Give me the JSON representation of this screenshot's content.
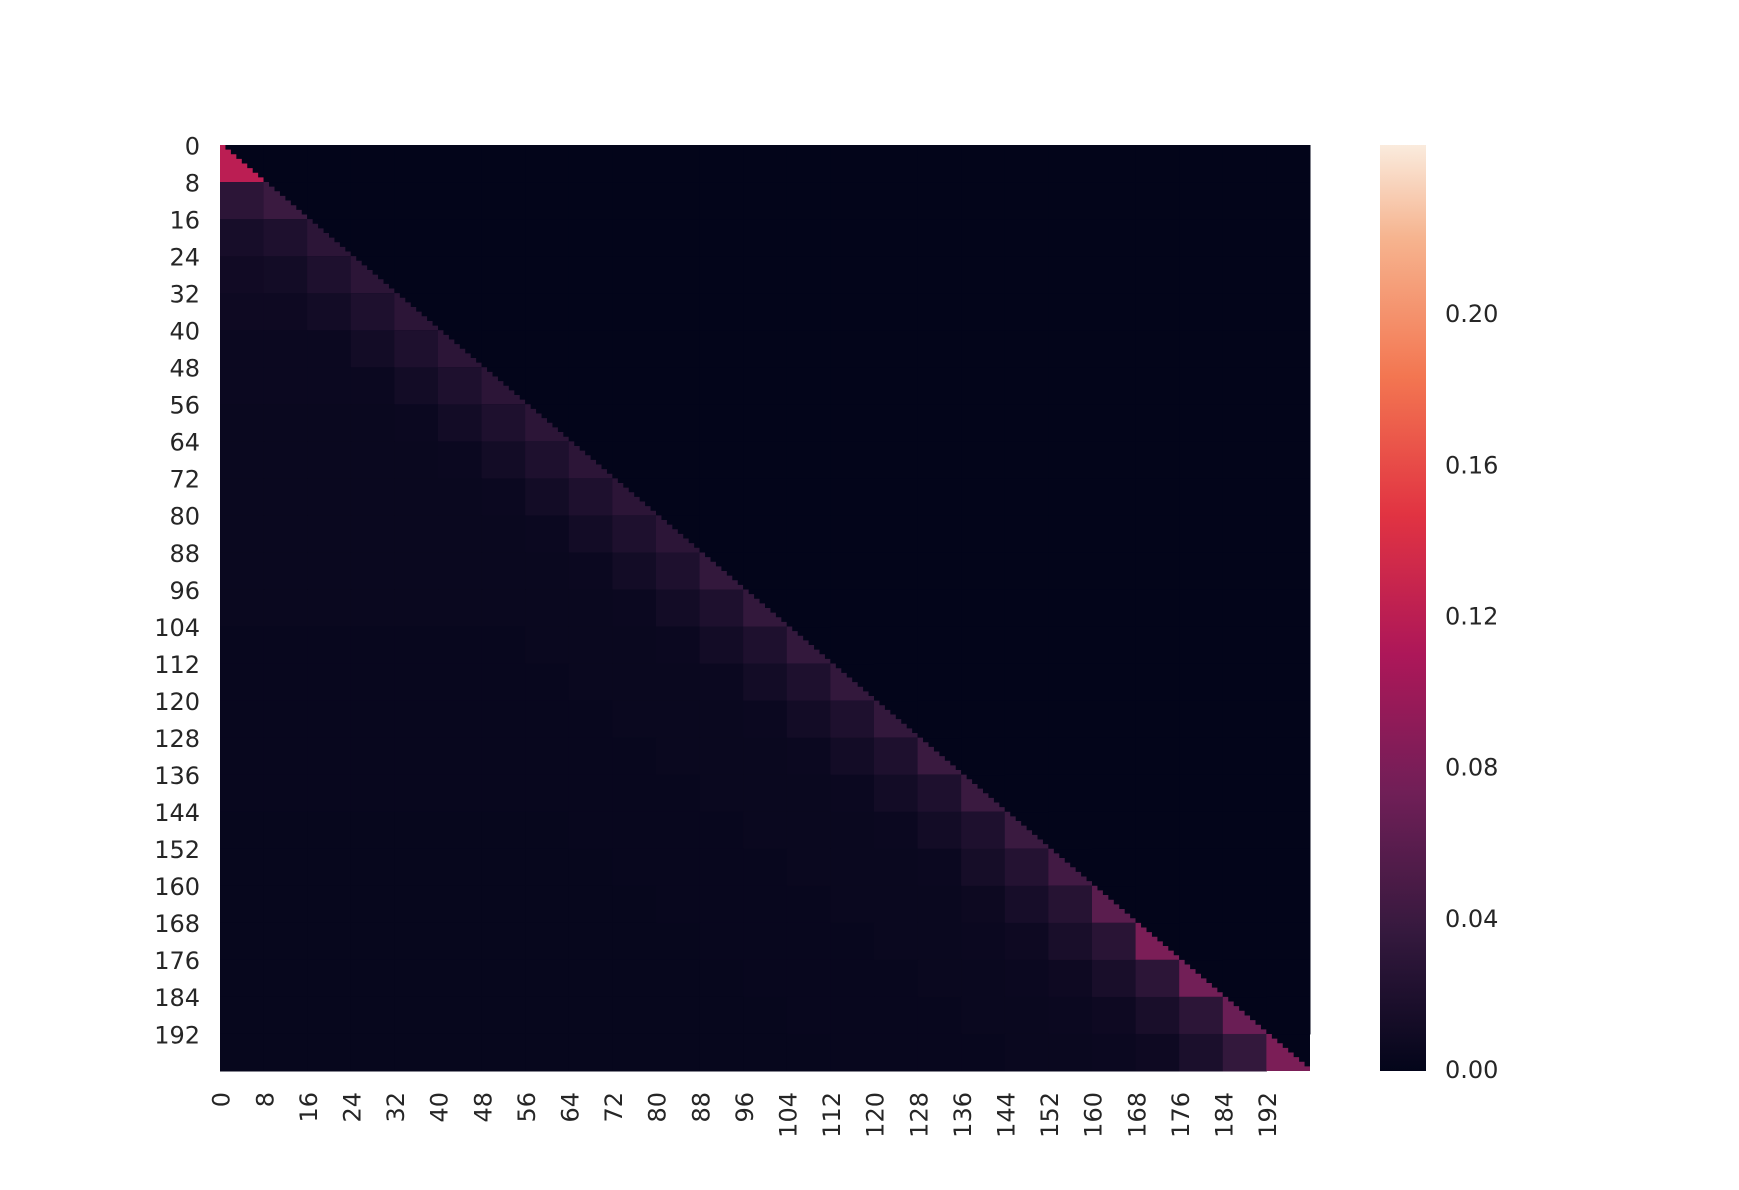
{
  "chart_data": {
    "type": "heatmap",
    "xlim": [
      0,
      200
    ],
    "ylim": [
      0,
      200
    ],
    "xticks": [
      0,
      8,
      16,
      24,
      32,
      40,
      48,
      56,
      64,
      72,
      80,
      88,
      96,
      104,
      112,
      120,
      128,
      136,
      144,
      152,
      160,
      168,
      176,
      184,
      192
    ],
    "yticks": [
      0,
      8,
      16,
      24,
      32,
      40,
      48,
      56,
      64,
      72,
      80,
      88,
      96,
      104,
      112,
      120,
      128,
      136,
      144,
      152,
      160,
      168,
      176,
      184,
      192
    ],
    "colormap": "rocket",
    "clim": [
      0,
      0.245
    ],
    "cticks": [
      {
        "value": 0,
        "label": "0.00"
      },
      {
        "value": 0.04,
        "label": "0.04"
      },
      {
        "value": 0.08,
        "label": "0.08"
      },
      {
        "value": 0.12,
        "label": "0.12"
      },
      {
        "value": 0.16,
        "label": "0.16"
      },
      {
        "value": 0.2,
        "label": "0.20"
      }
    ],
    "z": [
      [
        0.12,
        0,
        0,
        0,
        0,
        0,
        0,
        0,
        0,
        0,
        0,
        0,
        0,
        0,
        0,
        0,
        0,
        0,
        0,
        0,
        0,
        0,
        0,
        0,
        0
      ],
      [
        0.03,
        0.04,
        0,
        0,
        0,
        0,
        0,
        0,
        0,
        0,
        0,
        0,
        0,
        0,
        0,
        0,
        0,
        0,
        0,
        0,
        0,
        0,
        0,
        0,
        0
      ],
      [
        0.015,
        0.02,
        0.03,
        0,
        0,
        0,
        0,
        0,
        0,
        0,
        0,
        0,
        0,
        0,
        0,
        0,
        0,
        0,
        0,
        0,
        0,
        0,
        0,
        0,
        0
      ],
      [
        0.01,
        0.012,
        0.02,
        0.03,
        0,
        0,
        0,
        0,
        0,
        0,
        0,
        0,
        0,
        0,
        0,
        0,
        0,
        0,
        0,
        0,
        0,
        0,
        0,
        0,
        0
      ],
      [
        0.008,
        0.008,
        0.012,
        0.02,
        0.03,
        0,
        0,
        0,
        0,
        0,
        0,
        0,
        0,
        0,
        0,
        0,
        0,
        0,
        0,
        0,
        0,
        0,
        0,
        0,
        0
      ],
      [
        0.006,
        0.006,
        0.006,
        0.012,
        0.02,
        0.03,
        0,
        0,
        0,
        0,
        0,
        0,
        0,
        0,
        0,
        0,
        0,
        0,
        0,
        0,
        0,
        0,
        0,
        0,
        0
      ],
      [
        0.006,
        0.006,
        0.006,
        0.006,
        0.012,
        0.02,
        0.03,
        0,
        0,
        0,
        0,
        0,
        0,
        0,
        0,
        0,
        0,
        0,
        0,
        0,
        0,
        0,
        0,
        0,
        0
      ],
      [
        0.005,
        0.005,
        0.005,
        0.005,
        0.006,
        0.012,
        0.02,
        0.03,
        0,
        0,
        0,
        0,
        0,
        0,
        0,
        0,
        0,
        0,
        0,
        0,
        0,
        0,
        0,
        0,
        0
      ],
      [
        0.005,
        0.005,
        0.005,
        0.005,
        0.005,
        0.006,
        0.012,
        0.02,
        0.03,
        0,
        0,
        0,
        0,
        0,
        0,
        0,
        0,
        0,
        0,
        0,
        0,
        0,
        0,
        0,
        0
      ],
      [
        0.005,
        0.005,
        0.005,
        0.005,
        0.005,
        0.005,
        0.006,
        0.012,
        0.02,
        0.03,
        0,
        0,
        0,
        0,
        0,
        0,
        0,
        0,
        0,
        0,
        0,
        0,
        0,
        0,
        0
      ],
      [
        0.005,
        0.005,
        0.005,
        0.005,
        0.005,
        0.005,
        0.005,
        0.006,
        0.012,
        0.02,
        0.03,
        0,
        0,
        0,
        0,
        0,
        0,
        0,
        0,
        0,
        0,
        0,
        0,
        0,
        0
      ],
      [
        0.005,
        0.005,
        0.005,
        0.005,
        0.005,
        0.005,
        0.005,
        0.005,
        0.006,
        0.012,
        0.02,
        0.035,
        0,
        0,
        0,
        0,
        0,
        0,
        0,
        0,
        0,
        0,
        0,
        0,
        0
      ],
      [
        0.005,
        0.005,
        0.005,
        0.005,
        0.005,
        0.005,
        0.005,
        0.005,
        0.005,
        0.006,
        0.012,
        0.02,
        0.035,
        0,
        0,
        0,
        0,
        0,
        0,
        0,
        0,
        0,
        0,
        0,
        0
      ],
      [
        0.004,
        0.004,
        0.004,
        0.004,
        0.004,
        0.004,
        0.004,
        0.005,
        0.005,
        0.005,
        0.006,
        0.012,
        0.02,
        0.035,
        0,
        0,
        0,
        0,
        0,
        0,
        0,
        0,
        0,
        0,
        0
      ],
      [
        0.004,
        0.004,
        0.004,
        0.004,
        0.004,
        0.004,
        0.004,
        0.004,
        0.005,
        0.005,
        0.005,
        0.006,
        0.012,
        0.02,
        0.035,
        0,
        0,
        0,
        0,
        0,
        0,
        0,
        0,
        0,
        0
      ],
      [
        0.004,
        0.004,
        0.004,
        0.004,
        0.004,
        0.004,
        0.004,
        0.004,
        0.004,
        0.005,
        0.005,
        0.005,
        0.006,
        0.012,
        0.02,
        0.035,
        0,
        0,
        0,
        0,
        0,
        0,
        0,
        0,
        0
      ],
      [
        0.004,
        0.004,
        0.004,
        0.004,
        0.004,
        0.004,
        0.004,
        0.004,
        0.004,
        0.004,
        0.005,
        0.005,
        0.005,
        0.006,
        0.012,
        0.02,
        0.04,
        0,
        0,
        0,
        0,
        0,
        0,
        0,
        0
      ],
      [
        0.004,
        0.004,
        0.004,
        0.004,
        0.004,
        0.004,
        0.004,
        0.004,
        0.004,
        0.004,
        0.004,
        0.005,
        0.005,
        0.005,
        0.006,
        0.012,
        0.02,
        0.04,
        0,
        0,
        0,
        0,
        0,
        0,
        0
      ],
      [
        0.003,
        0.003,
        0.003,
        0.003,
        0.003,
        0.003,
        0.003,
        0.003,
        0.004,
        0.004,
        0.004,
        0.004,
        0.005,
        0.005,
        0.005,
        0.006,
        0.012,
        0.02,
        0.04,
        0,
        0,
        0,
        0,
        0,
        0
      ],
      [
        0.003,
        0.003,
        0.003,
        0.003,
        0.003,
        0.003,
        0.003,
        0.003,
        0.003,
        0.004,
        0.004,
        0.004,
        0.004,
        0.005,
        0.005,
        0.005,
        0.006,
        0.014,
        0.024,
        0.045,
        0,
        0,
        0,
        0,
        0
      ],
      [
        0.003,
        0.003,
        0.003,
        0.003,
        0.003,
        0.003,
        0.003,
        0.003,
        0.003,
        0.003,
        0.004,
        0.004,
        0.004,
        0.004,
        0.005,
        0.005,
        0.005,
        0.007,
        0.015,
        0.026,
        0.06,
        0,
        0,
        0,
        0
      ],
      [
        0.003,
        0.003,
        0.003,
        0.003,
        0.003,
        0.003,
        0.003,
        0.003,
        0.003,
        0.003,
        0.003,
        0.004,
        0.004,
        0.004,
        0.004,
        0.005,
        0.005,
        0.006,
        0.008,
        0.016,
        0.028,
        0.08,
        0,
        0,
        0
      ],
      [
        0.003,
        0.003,
        0.003,
        0.003,
        0.003,
        0.003,
        0.003,
        0.003,
        0.003,
        0.003,
        0.003,
        0.003,
        0.004,
        0.004,
        0.004,
        0.004,
        0.005,
        0.005,
        0.006,
        0.008,
        0.016,
        0.03,
        0.075,
        0,
        0
      ],
      [
        0.003,
        0.003,
        0.003,
        0.003,
        0.003,
        0.003,
        0.003,
        0.003,
        0.003,
        0.003,
        0.003,
        0.003,
        0.003,
        0.004,
        0.004,
        0.004,
        0.004,
        0.005,
        0.005,
        0.006,
        0.008,
        0.016,
        0.03,
        0.07,
        0
      ],
      [
        0.003,
        0.003,
        0.003,
        0.003,
        0.003,
        0.003,
        0.003,
        0.003,
        0.003,
        0.003,
        0.003,
        0.003,
        0.003,
        0.003,
        0.004,
        0.004,
        0.004,
        0.004,
        0.005,
        0.005,
        0.006,
        0.008,
        0.018,
        0.035,
        0.08
      ]
    ]
  }
}
